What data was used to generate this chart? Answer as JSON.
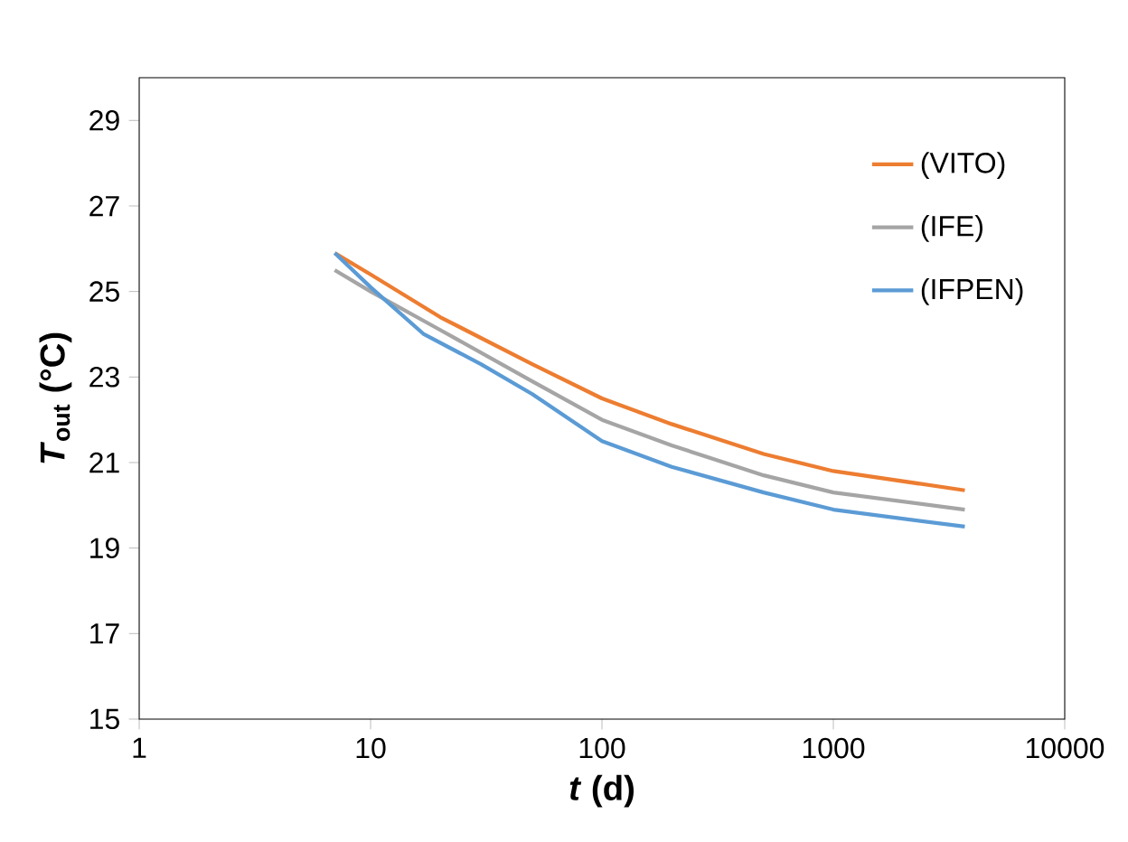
{
  "chart_data": {
    "type": "line",
    "xlabel": "*t* (d)",
    "ylabel": "*T*$_{out}$ (°C)",
    "log": "x",
    "xlim": [
      1,
      10000
    ],
    "xticks": [
      1,
      10,
      100,
      1000,
      10000
    ],
    "ylim": [
      15,
      30
    ],
    "yticks": [
      15,
      17,
      19,
      21,
      23,
      25,
      27,
      29
    ],
    "grid": false,
    "legend": "top right",
    "marker": "none",
    "line_style": "solid",
    "series": [
      {
        "name": "(VITO)",
        "color": "#ed7d31",
        "x": [
          7,
          10,
          20,
          50,
          100,
          200,
          500,
          1000,
          3700
        ],
        "values": [
          25.9,
          25.4,
          24.4,
          23.3,
          22.5,
          21.9,
          21.2,
          20.8,
          20.35
        ]
      },
      {
        "name": "(IFE)",
        "color": "#a5a5a5",
        "x": [
          7,
          10,
          20,
          50,
          100,
          200,
          500,
          1000,
          3700
        ],
        "values": [
          25.5,
          25.0,
          24.1,
          22.9,
          22.0,
          21.4,
          20.7,
          20.3,
          19.9
        ]
      },
      {
        "name": "(IFPEN)",
        "color": "#5b9bd5",
        "x": [
          7,
          10,
          17,
          30,
          50,
          100,
          200,
          500,
          1000,
          3700
        ],
        "values": [
          25.9,
          25.1,
          24.0,
          23.3,
          22.6,
          21.5,
          20.9,
          20.3,
          19.9,
          19.5
        ]
      }
    ]
  }
}
